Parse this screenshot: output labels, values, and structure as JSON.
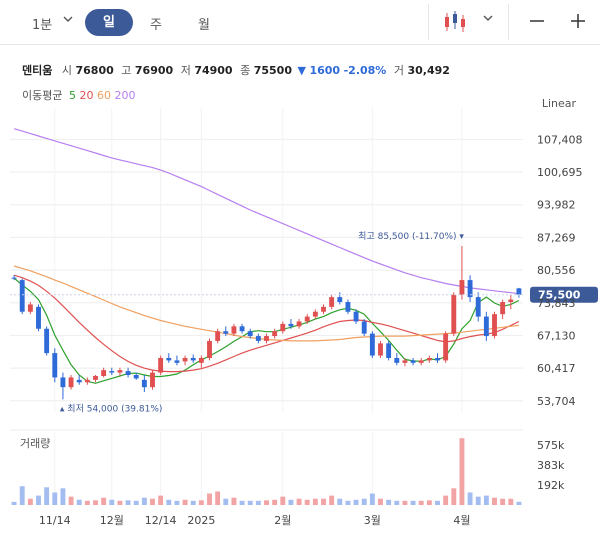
{
  "toolbar": {
    "interval_label": "1분",
    "tabs": [
      {
        "label": "일",
        "active": true
      },
      {
        "label": "주",
        "active": false
      },
      {
        "label": "월",
        "active": false
      }
    ],
    "icons": [
      "chevron-down-icon",
      "candlestick-icon",
      "chevron-down-icon",
      "minus-icon",
      "plus-icon"
    ]
  },
  "stock": {
    "name": "덴티움",
    "open_label": "시",
    "open": "76800",
    "high_label": "고",
    "high": "76900",
    "low_label": "저",
    "low": "74900",
    "close_label": "종",
    "close": "75500",
    "change_arrow": "▼",
    "change": "1600",
    "change_pct": "-2.08%",
    "volume_label": "거",
    "volume": "30,492"
  },
  "moving_average": {
    "label": "이동평균",
    "periods": [
      {
        "label": "5",
        "color": "#2ca02c"
      },
      {
        "label": "20",
        "color": "#e05050"
      },
      {
        "label": "60",
        "color": "#f0a060"
      },
      {
        "label": "200",
        "color": "#b77ff0"
      }
    ]
  },
  "scale_label": "Linear",
  "volume_panel_label": "거래량",
  "colors": {
    "up": "#e05050",
    "down": "#2f6ad9",
    "accent": "#3d5a98",
    "current_price_tag": "#3d5a98"
  },
  "chart_data": {
    "type": "candlestick",
    "y_axis_labels": [
      "107,408",
      "100,695",
      "93,982",
      "87,269",
      "80,556",
      "73,843",
      "67,130",
      "60,417",
      "53,704"
    ],
    "y_axis_values": [
      107408,
      100695,
      93982,
      87269,
      80556,
      73843,
      67130,
      60417,
      53704
    ],
    "ylim": [
      51400,
      111800
    ],
    "x_axis_labels": [
      "11/14",
      "12월",
      "12/14",
      "2025",
      "2월",
      "3월",
      "4월"
    ],
    "x_label_index": [
      5,
      12,
      18,
      23,
      33,
      44,
      55
    ],
    "current_price_label": "75,500",
    "high_annotation": {
      "text": "최고 85,500 (-11.70%) ▾",
      "value": 85500,
      "index": 55
    },
    "low_annotation": {
      "text": "▴ 최저 54,000 (39.81%)",
      "value": 54000,
      "index": 6
    },
    "volume_axis_labels": [
      "575k",
      "383k",
      "192k"
    ],
    "volume_axis_values": [
      575000,
      383000,
      192000
    ],
    "volume_max": 700000,
    "candles": [
      [
        79000,
        79500,
        78500,
        78800
      ],
      [
        78500,
        78800,
        71500,
        72000
      ],
      [
        72000,
        74000,
        71500,
        73500
      ],
      [
        73000,
        73500,
        68000,
        68500
      ],
      [
        68500,
        69000,
        63000,
        63500
      ],
      [
        63500,
        64500,
        57500,
        58500
      ],
      [
        58500,
        59500,
        54000,
        56500
      ],
      [
        56500,
        59000,
        56000,
        58500
      ],
      [
        58000,
        59000,
        57000,
        57500
      ],
      [
        57500,
        58500,
        57000,
        58000
      ],
      [
        58000,
        59000,
        57500,
        58800
      ],
      [
        58800,
        60500,
        58500,
        60000
      ],
      [
        59800,
        60500,
        59000,
        59500
      ],
      [
        59500,
        60500,
        58800,
        60000
      ],
      [
        59800,
        60500,
        58500,
        59000
      ],
      [
        59000,
        59500,
        58000,
        58300
      ],
      [
        58000,
        59000,
        55500,
        56500
      ],
      [
        56500,
        60000,
        56000,
        59500
      ],
      [
        59500,
        63000,
        59000,
        62500
      ],
      [
        62500,
        63500,
        61500,
        62000
      ],
      [
        62000,
        63000,
        61000,
        61500
      ],
      [
        61800,
        63000,
        61000,
        62500
      ],
      [
        62500,
        63200,
        61500,
        62000
      ],
      [
        61500,
        63000,
        60500,
        62500
      ],
      [
        62500,
        66500,
        62000,
        66000
      ],
      [
        66000,
        68500,
        65500,
        68000
      ],
      [
        68000,
        69000,
        67000,
        67500
      ],
      [
        67500,
        69500,
        67000,
        69000
      ],
      [
        69000,
        69500,
        67500,
        68000
      ],
      [
        68000,
        68500,
        66500,
        67000
      ],
      [
        67000,
        67500,
        65500,
        66000
      ],
      [
        66000,
        67500,
        65500,
        67000
      ],
      [
        67000,
        68500,
        66500,
        68000
      ],
      [
        68000,
        70000,
        67500,
        69500
      ],
      [
        69500,
        70500,
        68500,
        69000
      ],
      [
        69000,
        70500,
        68500,
        70000
      ],
      [
        70000,
        71500,
        69500,
        71000
      ],
      [
        71000,
        72500,
        70500,
        72000
      ],
      [
        72000,
        73500,
        71500,
        73000
      ],
      [
        73000,
        75500,
        72500,
        75000
      ],
      [
        75000,
        76000,
        73500,
        74000
      ],
      [
        74000,
        74500,
        71500,
        72000
      ],
      [
        72000,
        72500,
        69500,
        70000
      ],
      [
        70000,
        70500,
        67000,
        67500
      ],
      [
        67500,
        68000,
        62500,
        63000
      ],
      [
        63000,
        66000,
        62500,
        65500
      ],
      [
        65500,
        66000,
        62000,
        62500
      ],
      [
        62500,
        63500,
        61000,
        61500
      ],
      [
        61500,
        62500,
        60800,
        62000
      ],
      [
        62000,
        62500,
        61000,
        61500
      ],
      [
        61500,
        62500,
        61000,
        62000
      ],
      [
        62000,
        63000,
        61500,
        62500
      ],
      [
        62500,
        63500,
        61500,
        62000
      ],
      [
        62000,
        68000,
        61500,
        67500
      ],
      [
        67500,
        76000,
        67000,
        75500
      ],
      [
        75500,
        85500,
        74500,
        78500
      ],
      [
        78500,
        79500,
        74000,
        75000
      ],
      [
        75000,
        76000,
        70000,
        71000
      ],
      [
        71000,
        72000,
        66000,
        67000
      ],
      [
        67000,
        72000,
        66500,
        71500
      ],
      [
        71500,
        74500,
        70500,
        74000
      ],
      [
        74000,
        75500,
        72500,
        74500
      ],
      [
        76800,
        76900,
        74900,
        75500
      ]
    ],
    "volume": [
      30000,
      180000,
      60000,
      90000,
      170000,
      120000,
      160000,
      80000,
      50000,
      40000,
      45000,
      70000,
      50000,
      40000,
      45000,
      40000,
      70000,
      60000,
      90000,
      50000,
      40000,
      50000,
      40000,
      45000,
      110000,
      130000,
      60000,
      70000,
      40000,
      40000,
      40000,
      45000,
      50000,
      80000,
      50000,
      60000,
      50000,
      60000,
      60000,
      90000,
      60000,
      40000,
      50000,
      60000,
      110000,
      60000,
      50000,
      40000,
      40000,
      40000,
      40000,
      45000,
      40000,
      90000,
      160000,
      640000,
      120000,
      80000,
      90000,
      70000,
      60000,
      60000,
      30492
    ],
    "ma_series": [
      {
        "name": "5",
        "color": "#2ca02c",
        "values": [
          78900,
          77500,
          76200,
          74500,
          71300,
          67200,
          64100,
          61100,
          59000,
          57700,
          57300,
          57800,
          58300,
          58800,
          59300,
          59400,
          59000,
          58700,
          58700,
          58900,
          59200,
          60000,
          61100,
          62100,
          62900,
          63800,
          64800,
          65900,
          66900,
          67900,
          68100,
          67900,
          67900,
          68400,
          68800,
          69300,
          69800,
          70500,
          71000,
          71800,
          72400,
          72700,
          72300,
          71500,
          69600,
          67900,
          66100,
          64100,
          62200,
          61900,
          61800,
          62300,
          62100,
          62800,
          65400,
          68500,
          70200,
          73900,
          75000,
          73800,
          73100,
          73500,
          74300
        ]
      },
      {
        "name": "20",
        "color": "#e05050",
        "values": [
          79500,
          79000,
          78300,
          77400,
          76200,
          74800,
          73200,
          71500,
          69800,
          68200,
          66700,
          65300,
          64000,
          62800,
          61800,
          61000,
          60400,
          60000,
          59800,
          59700,
          59700,
          59800,
          60000,
          60300,
          60800,
          61400,
          62100,
          62800,
          63500,
          64100,
          64600,
          65100,
          65600,
          66100,
          66600,
          67100,
          67600,
          68200,
          68900,
          69500,
          70000,
          70200,
          70300,
          70200,
          69800,
          69500,
          69100,
          68600,
          68100,
          67600,
          67100,
          66600,
          66100,
          65800,
          66000,
          66500,
          66900,
          67200,
          67400,
          67700,
          68400,
          69200,
          70000
        ]
      },
      {
        "name": "60",
        "color": "#f0a060",
        "values": [
          81400,
          80900,
          80400,
          79800,
          79200,
          78500,
          77900,
          77200,
          76500,
          75800,
          75100,
          74400,
          73700,
          73000,
          72400,
          71800,
          71200,
          70700,
          70200,
          69800,
          69400,
          69000,
          68700,
          68400,
          68100,
          67800,
          67500,
          67200,
          66900,
          66700,
          66500,
          66300,
          66200,
          66100,
          66000,
          66000,
          66000,
          66000,
          66100,
          66200,
          66300,
          66500,
          66700,
          66800,
          66900,
          67000,
          67000,
          67000,
          67000,
          67100,
          67200,
          67300,
          67400,
          67500,
          67600,
          67800,
          68000,
          68200,
          68400,
          68600,
          68800,
          69000,
          69200
        ]
      },
      {
        "name": "200",
        "color": "#b77ff0",
        "values": [
          109600,
          109100,
          108600,
          108100,
          107600,
          107100,
          106600,
          106100,
          105600,
          105100,
          104600,
          104100,
          103600,
          103200,
          102800,
          102400,
          102000,
          101600,
          101100,
          100500,
          99800,
          99100,
          98400,
          97700,
          96900,
          96100,
          95300,
          94500,
          93700,
          92900,
          92200,
          91500,
          90800,
          90100,
          89400,
          88700,
          88000,
          87300,
          86600,
          85900,
          85200,
          84500,
          83800,
          83100,
          82400,
          81800,
          81200,
          80600,
          80000,
          79500,
          79000,
          78600,
          78200,
          77800,
          77500,
          77200,
          76900,
          76700,
          76500,
          76300,
          76100,
          75900,
          75700
        ]
      }
    ]
  }
}
